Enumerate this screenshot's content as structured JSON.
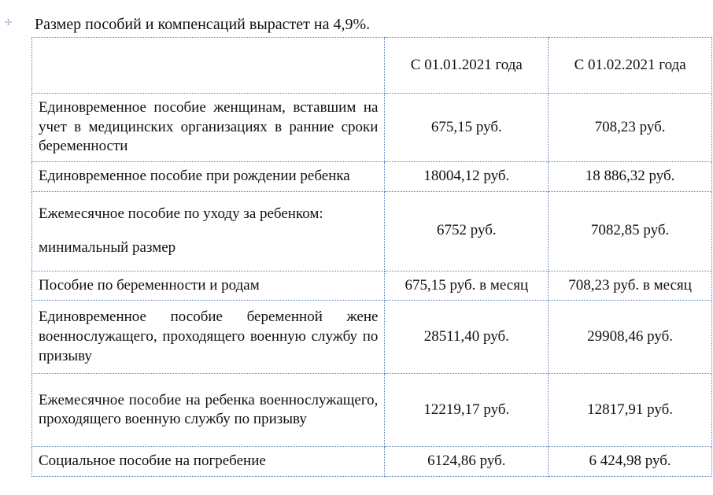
{
  "title": "Размер пособий и компенсаций вырастет на 4,9%.",
  "table": {
    "border_color": "#5a7fbf",
    "font_family": "Times New Roman",
    "font_size_pt": 14,
    "text_color": "#111111",
    "background_color": "#ffffff",
    "columns": {
      "desc_width_pct": 53,
      "val_width_pct": 23.5
    },
    "header": {
      "col1": "",
      "col2": "С 01.01.2021 года",
      "col3": "С 01.02.2021 года"
    },
    "rows": [
      {
        "desc": "Единовременное пособие женщинам, вставшим на учет в медицинских организациях в ранние сроки беременности",
        "v1": "675,15 руб.",
        "v2": "708,23 руб."
      },
      {
        "desc": "Единовременное пособие при рождении ребенка",
        "v1": "18004,12 руб.",
        "v2": "18 886,32 руб."
      },
      {
        "desc_line1": "Ежемесячное пособие по уходу за ребенком:",
        "desc_line2": "минимальный размер",
        "v1": "6752 руб.",
        "v2": "7082,85 руб."
      },
      {
        "desc": "Пособие по беременности и родам",
        "v1": "675,15 руб. в месяц",
        "v2": "708,23 руб. в месяц"
      },
      {
        "desc": "Единовременное пособие беременной жене военнослужащего, проходящего военную службу по призыву",
        "v1": "28511,40 руб.",
        "v2": "29908,46 руб."
      },
      {
        "desc": "Ежемесячное пособие на ребенка военнослужащего, проходящего военную службу по призыву",
        "v1": "12219,17 руб.",
        "v2": "12817,91 руб."
      },
      {
        "desc": "Социальное пособие на погребение",
        "v1": "6124,86 руб.",
        "v2": "6 424,98 руб."
      }
    ]
  }
}
